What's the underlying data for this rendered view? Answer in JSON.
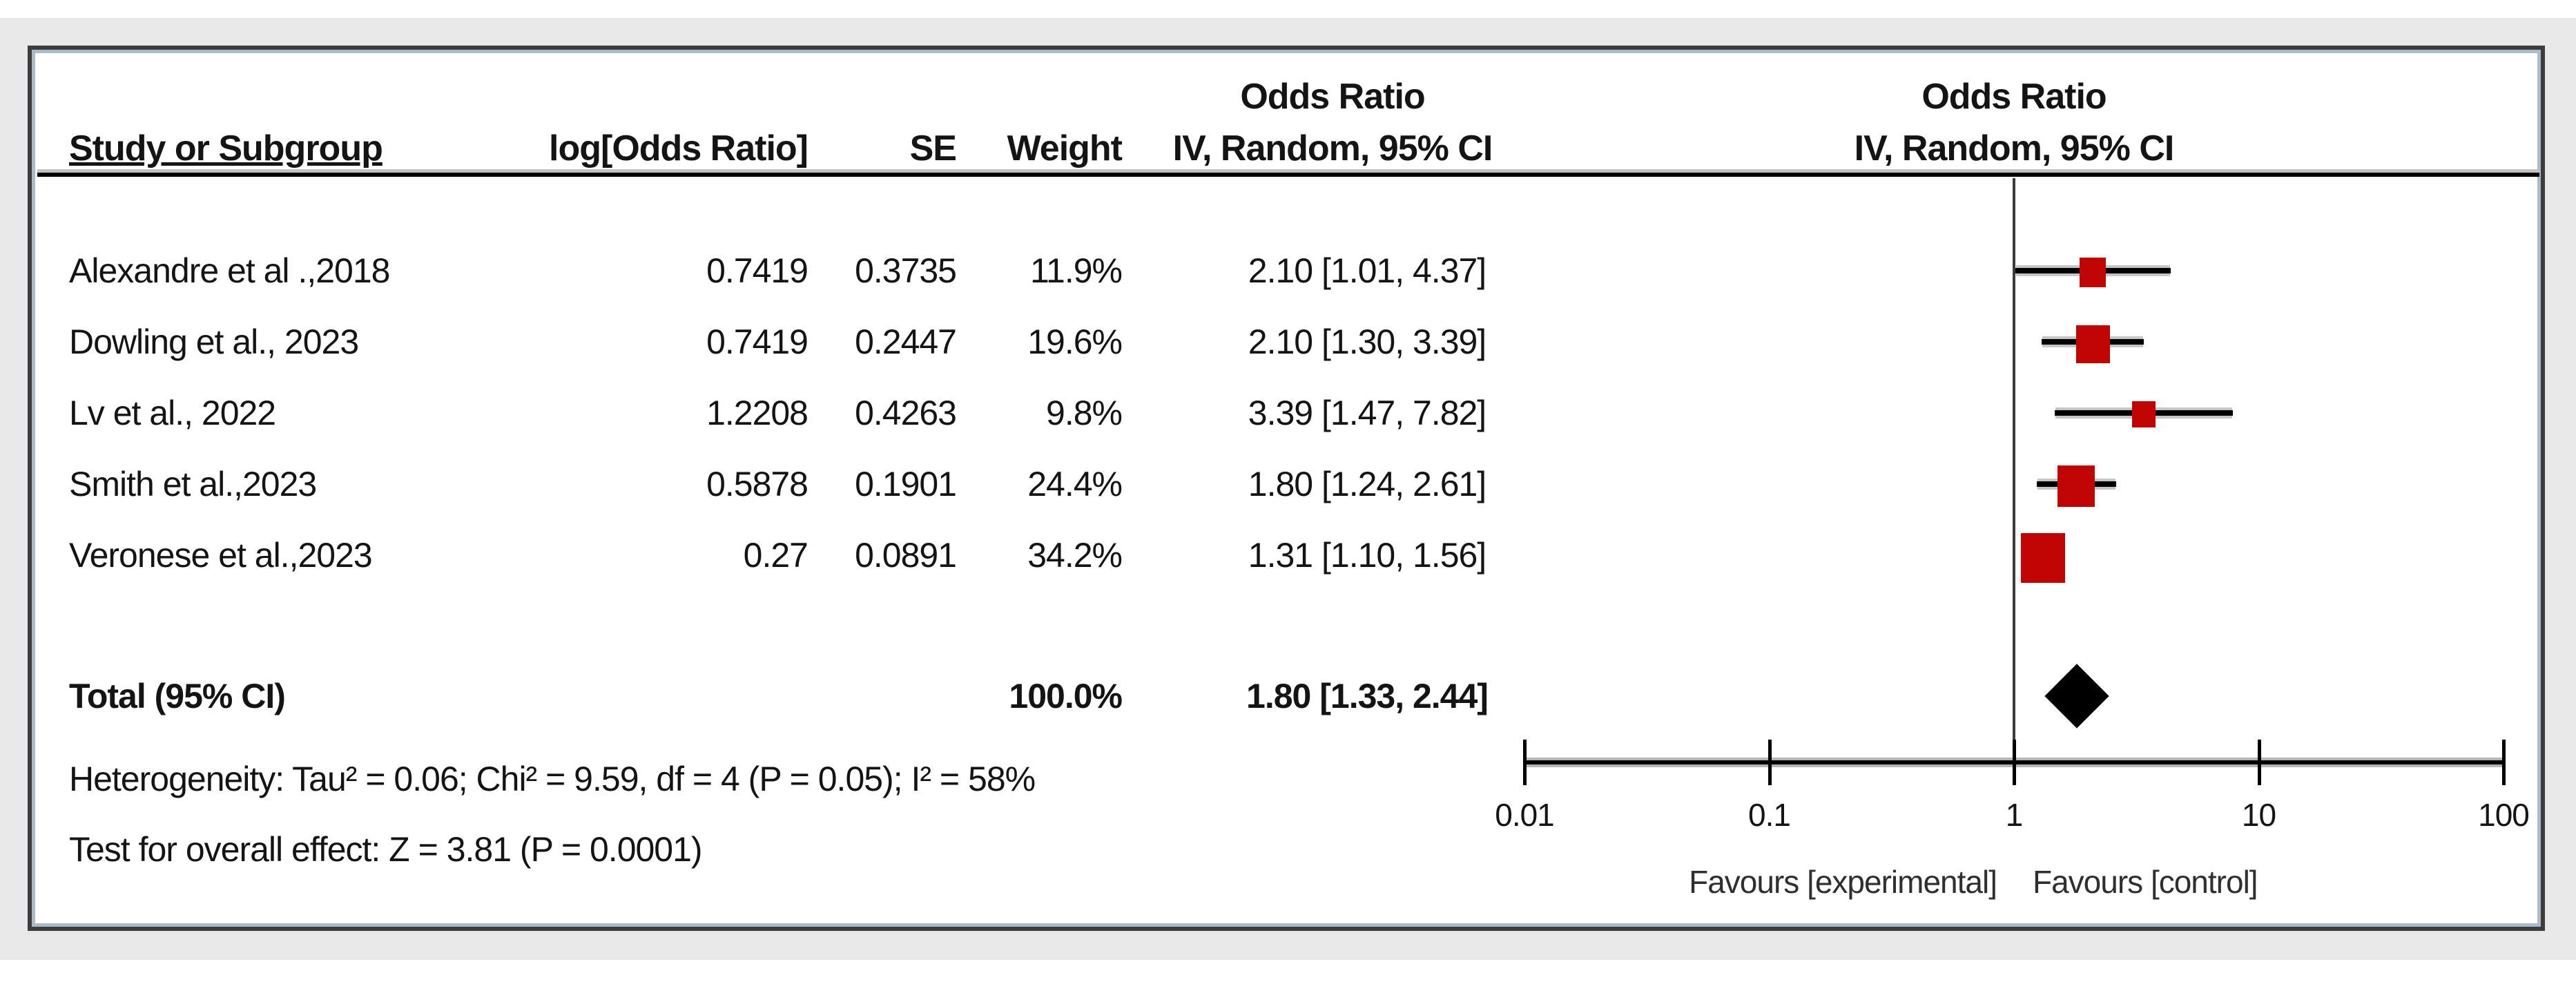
{
  "header": {
    "col_study": "Study or Subgroup",
    "col_logor": "log[Odds Ratio]",
    "col_se": "SE",
    "col_weight": "Weight",
    "effect_title": "Odds Ratio",
    "effect_subtitle": "IV, Random, 95% CI",
    "plot_title": "Odds Ratio",
    "plot_subtitle": "IV, Random, 95% CI"
  },
  "chart_data": {
    "type": "scatter",
    "subtype": "forest-plot",
    "x_scale": "log10",
    "xlim": [
      0.01,
      100
    ],
    "x_ticks": [
      0.01,
      0.1,
      1,
      10,
      100
    ],
    "tick_labels": [
      "0.01",
      "0.1",
      "1",
      "10",
      "100"
    ],
    "grid": false,
    "legend_position": "none",
    "effect_measure": "Odds Ratio",
    "model": "IV, Random, 95% CI",
    "studies": [
      {
        "name": "Alexandre  et al .,2018",
        "logor": "0.7419",
        "se": "0.3735",
        "weight": "11.9%",
        "or_text": "2.10 [1.01, 4.37]",
        "or": 2.1,
        "lo": 1.01,
        "hi": 4.37,
        "weight_pct": 11.9
      },
      {
        "name": "Dowling et al., 2023",
        "logor": "0.7419",
        "se": "0.2447",
        "weight": "19.6%",
        "or_text": "2.10 [1.30, 3.39]",
        "or": 2.1,
        "lo": 1.3,
        "hi": 3.39,
        "weight_pct": 19.6
      },
      {
        "name": "Lv et al., 2022",
        "logor": "1.2208",
        "se": "0.4263",
        "weight": "9.8%",
        "or_text": "3.39 [1.47, 7.82]",
        "or": 3.39,
        "lo": 1.47,
        "hi": 7.82,
        "weight_pct": 9.8
      },
      {
        "name": "Smith et al.,2023",
        "logor": "0.5878",
        "se": "0.1901",
        "weight": "24.4%",
        "or_text": "1.80 [1.24, 2.61]",
        "or": 1.8,
        "lo": 1.24,
        "hi": 2.61,
        "weight_pct": 24.4
      },
      {
        "name": "Veronese et al.,2023",
        "logor": "0.27",
        "se": "0.0891",
        "weight": "34.2%",
        "or_text": "1.31 [1.10, 1.56]",
        "or": 1.31,
        "lo": 1.1,
        "hi": 1.56,
        "weight_pct": 34.2
      }
    ],
    "total": {
      "label": "Total (95% CI)",
      "weight": "100.0%",
      "or_text": "1.80 [1.33, 2.44]",
      "or": 1.8,
      "lo": 1.33,
      "hi": 2.44
    },
    "heterogeneity": "Heterogeneity: Tau² = 0.06; Chi² = 9.59, df = 4 (P = 0.05); I² = 58%",
    "overall_effect": "Test for overall effect: Z = 3.81 (P = 0.0001)",
    "favours_left": "Favours [experimental]",
    "favours_right": "Favours [control]"
  },
  "colors": {
    "marker": "#c00404",
    "diamond": "#000000",
    "ci_line": "#000000",
    "axis": "#000000",
    "frame_border": "#3d3d3d",
    "accent_border": "#a9bac8",
    "page_band": "#e8e8e8",
    "text": "#141414"
  }
}
